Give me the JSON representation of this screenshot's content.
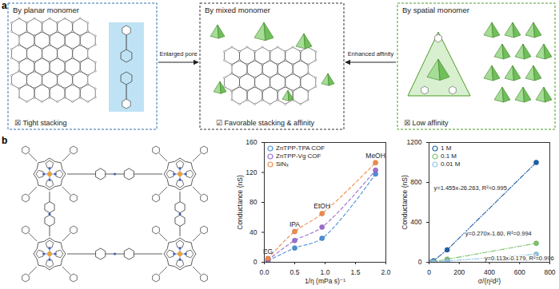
{
  "panel_a": {
    "label": "a",
    "boxes": [
      {
        "title": "By planar monomer",
        "check": "☒",
        "note": "Tight stacking",
        "color": "#2f6fb5"
      },
      {
        "title": "By mixed monomer",
        "check": "☑",
        "note": "Favorable stacking & affinity",
        "color": "#333333"
      },
      {
        "title": "By spatial monomer",
        "check": "☒",
        "note": "Low affinity",
        "color": "#4c9a2a"
      }
    ],
    "arrows": [
      "Enlarged pore",
      "Enhanced affinity"
    ]
  },
  "panel_b": {
    "label": "b"
  },
  "chart_data": [
    {
      "type": "scatter",
      "x_label": "1/η (mPa s)⁻¹",
      "y_label": "Conductance (nS)",
      "x": [
        0.06,
        0.5,
        0.95,
        1.83
      ],
      "point_labels": [
        "EG",
        "IPA",
        "EtOH",
        "MeOH"
      ],
      "series": [
        {
          "name": "ZnTPP-TPA COF",
          "color": "#4a90d9",
          "values": [
            2,
            19,
            32,
            118
          ],
          "marker": "circle",
          "line_style": "dashed"
        },
        {
          "name": "ZnTPP-Vg COF",
          "color": "#9b6fd0",
          "values": [
            3,
            29,
            47,
            123
          ],
          "marker": "circle",
          "line_style": "dashed"
        },
        {
          "name": "SiNₓ",
          "color": "#f08a4b",
          "values": [
            5,
            41,
            65,
            133
          ],
          "marker": "circle",
          "line_style": "dashed"
        }
      ],
      "xlim": [
        0,
        2
      ],
      "xticks": [
        {
          "value": 0,
          "label": "0.0"
        },
        0.5,
        {
          "value": 1,
          "label": "1.0"
        },
        1.5,
        {
          "value": 2,
          "label": "2.0"
        }
      ],
      "ylim": [
        0,
        160
      ],
      "yticks": [
        0,
        40,
        80,
        120,
        160
      ],
      "grid": false,
      "legend": "top-left"
    },
    {
      "type": "scatter",
      "x_label": "σ/(η²d²)",
      "y_label": "Conductance (nS)",
      "x": [
        10,
        30,
        120,
        710
      ],
      "series": [
        {
          "name": "1 M",
          "color": "#1f5fa8",
          "values": [
            0,
            15,
            125,
            1000
          ],
          "marker": "circle",
          "line_style": "dashdot",
          "fit": "y=1.455x-26.263, R²=0.995"
        },
        {
          "name": "0.1 M",
          "color": "#7cc26b",
          "values": [
            0,
            6,
            30,
            190
          ],
          "marker": "circle",
          "line_style": "dashdot",
          "fit": "y=0.270x-1.60, R²=0.994"
        },
        {
          "name": "0.01 M",
          "color": "#8fc3e8",
          "values": [
            0,
            2,
            12,
            80
          ],
          "marker": "circle",
          "line_style": "dashdot",
          "fit": "y=0.113x-0.179, R²=0.996"
        }
      ],
      "xlim": [
        0,
        800
      ],
      "xticks": [
        0,
        200,
        400,
        600,
        800
      ],
      "ylim": [
        0,
        1200
      ],
      "yticks": [
        0,
        400,
        800,
        1200
      ],
      "grid": false,
      "legend": "top-left"
    }
  ]
}
